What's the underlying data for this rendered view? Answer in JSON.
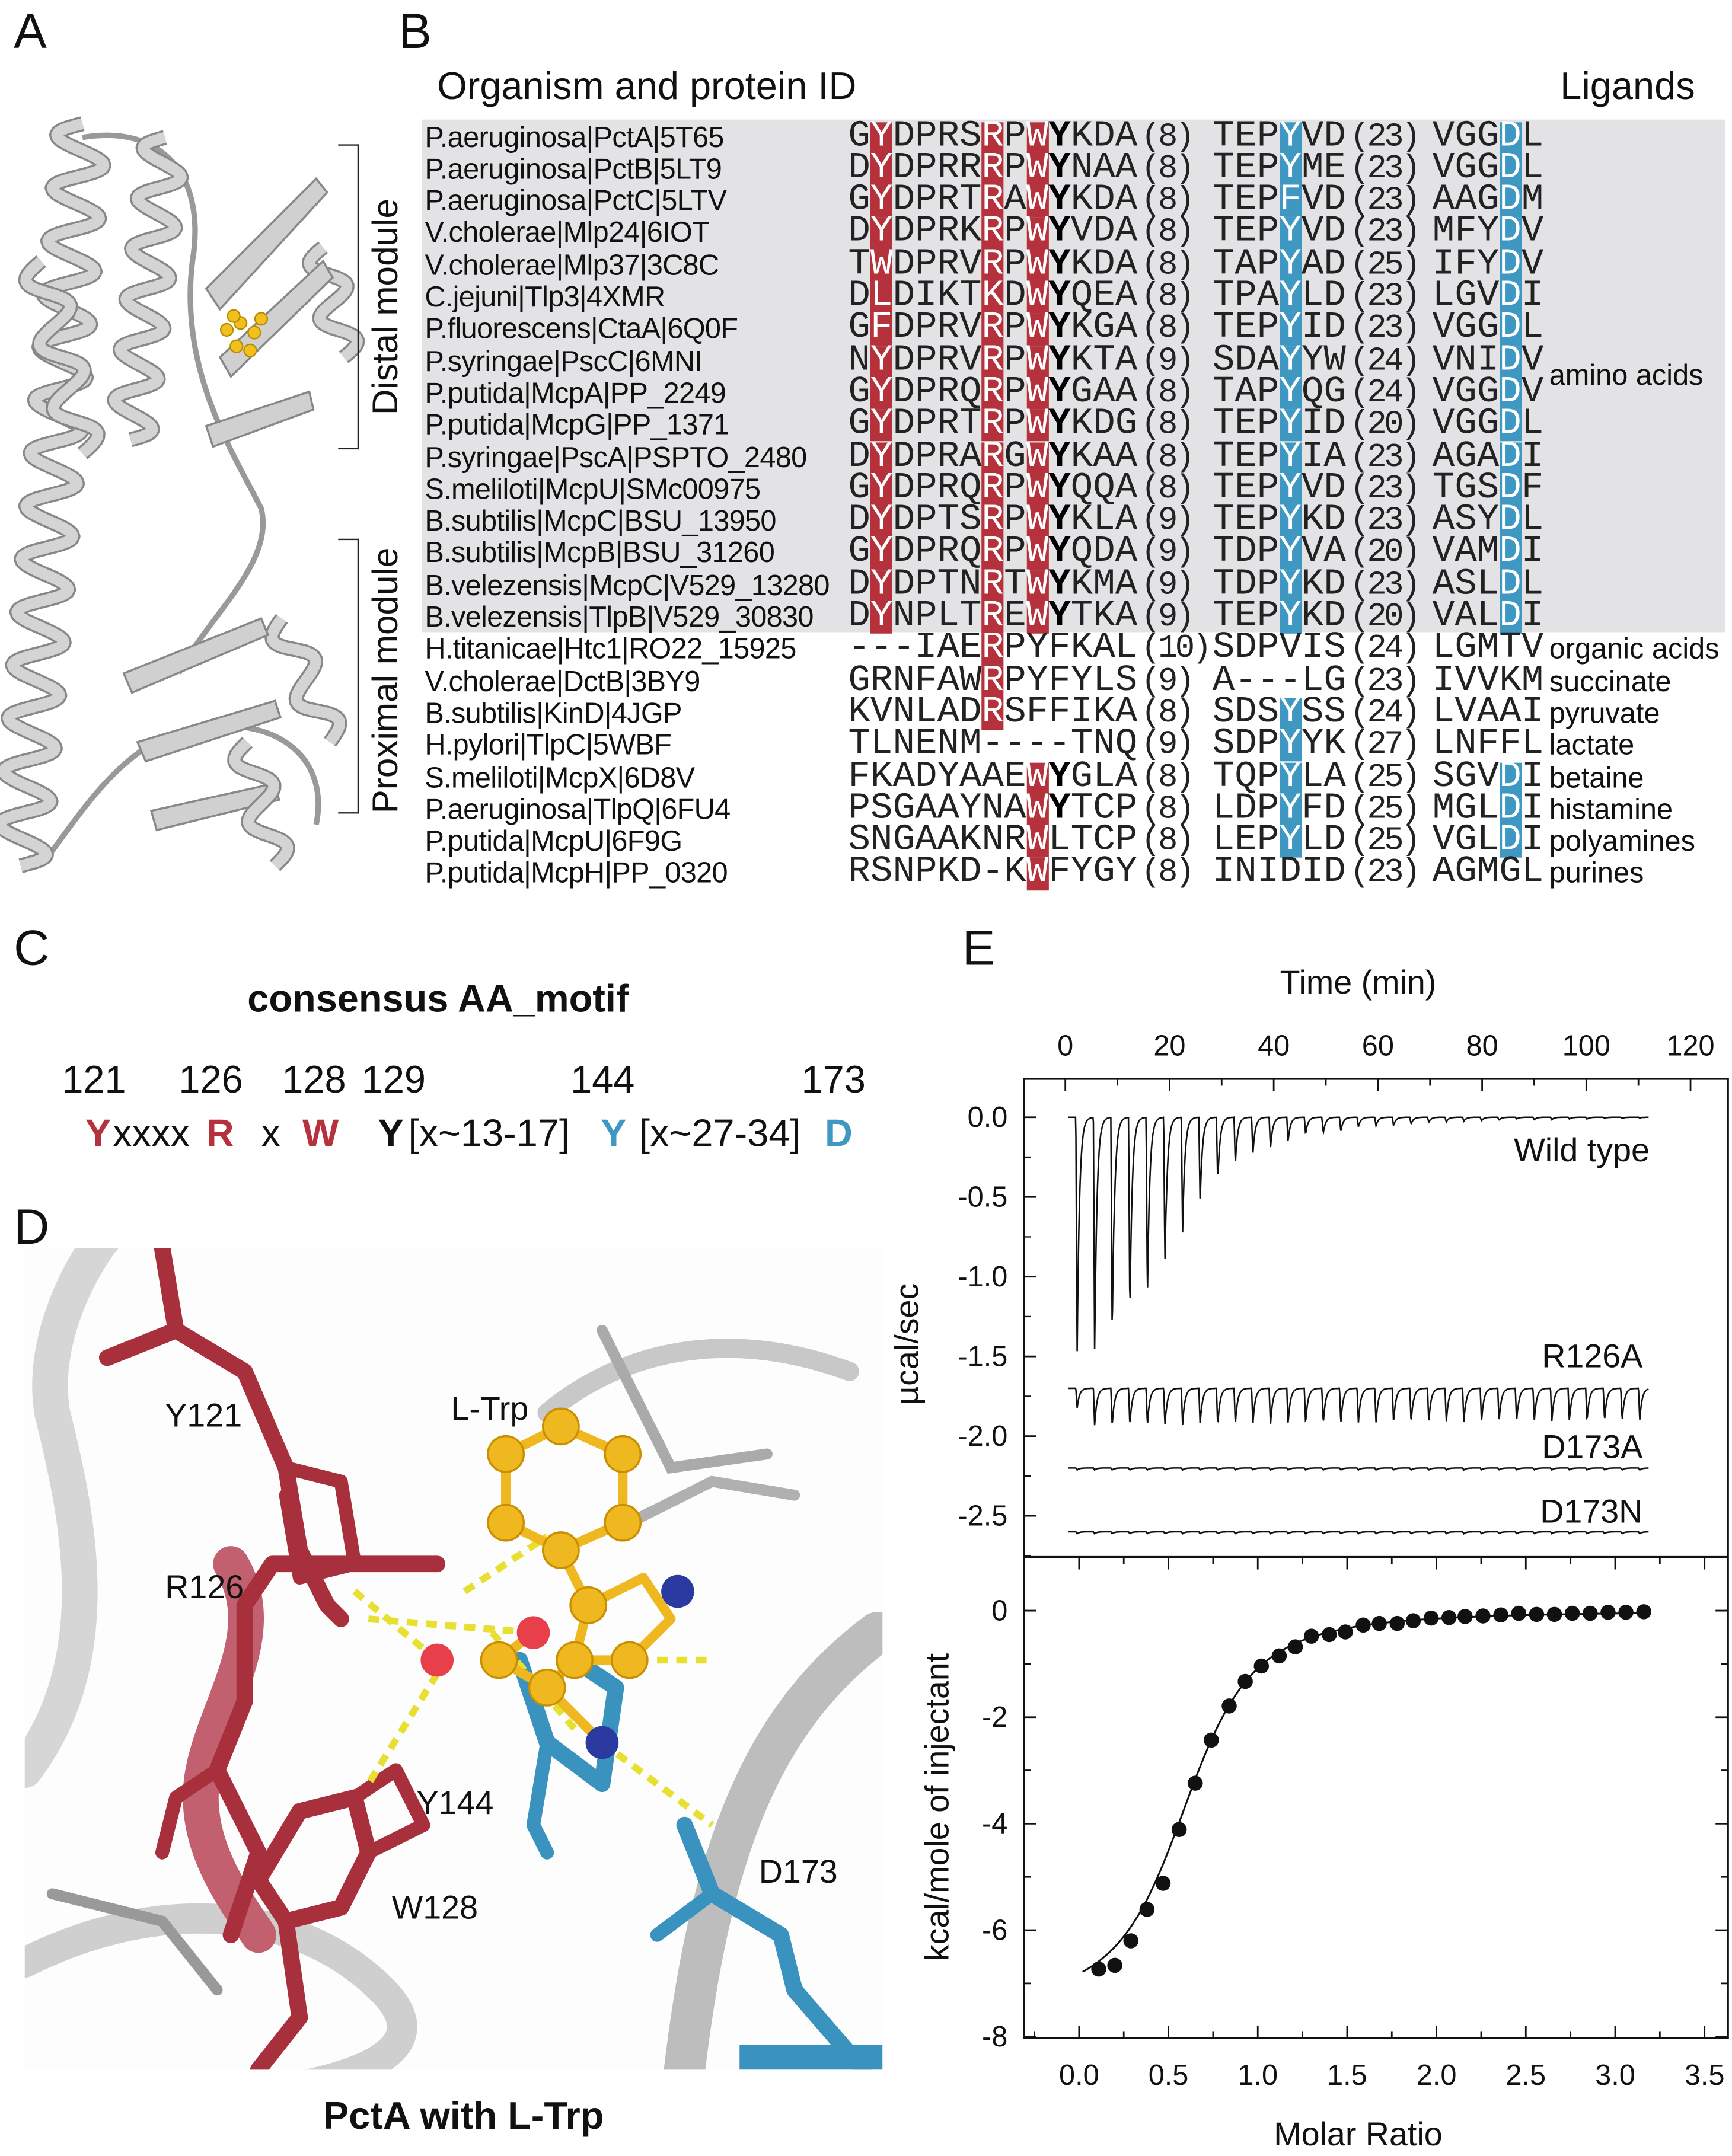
{
  "panels": {
    "a": "A",
    "b": "B",
    "c": "C",
    "d": "D",
    "e": "E"
  },
  "panel_a": {
    "distal_label": "Distal module",
    "proximal_label": "Proximal module"
  },
  "panel_b": {
    "header_organism": "Organism and protein ID",
    "header_ligands": "Ligands",
    "colors": {
      "red": "#b5323d",
      "blue": "#3f98c2",
      "shade": "#e3e3e5"
    },
    "rows": [
      {
        "name": "P.aeruginosa|PctA|5T65",
        "s1": "GYDPRSRPWYKDA",
        "n1": "(8)",
        "s3": "TEPYVD",
        "n2": "(23)",
        "s5": "VGGDL",
        "ligand": "",
        "red": [
          1,
          6,
          8
        ],
        "bold": [
          9
        ],
        "blue3": [
          3
        ],
        "blue5": [
          3
        ]
      },
      {
        "name": "P.aeruginosa|PctB|5LT9",
        "s1": "DYDPRRRPWYNAA",
        "n1": "(8)",
        "s3": "TEPYME",
        "n2": "(23)",
        "s5": "VGGDL",
        "ligand": "",
        "red": [
          1,
          6,
          8
        ],
        "bold": [
          9
        ],
        "blue3": [
          3
        ],
        "blue5": [
          3
        ]
      },
      {
        "name": "P.aeruginosa|PctC|5LTV",
        "s1": "GYDPRTRAWYKDA",
        "n1": "(8)",
        "s3": "TEPFVD",
        "n2": "(23)",
        "s5": "AAGDM",
        "ligand": "",
        "red": [
          1,
          6,
          8
        ],
        "bold": [
          9
        ],
        "blue3": [
          3
        ],
        "blue5": [
          3
        ]
      },
      {
        "name": "V.cholerae|Mlp24|6IOT",
        "s1": "DYDPRKRPWYVDA",
        "n1": "(8)",
        "s3": "TEPYVD",
        "n2": "(23)",
        "s5": "MFYDV",
        "ligand": "",
        "red": [
          1,
          6,
          8
        ],
        "bold": [
          9
        ],
        "blue3": [
          3
        ],
        "blue5": [
          3
        ]
      },
      {
        "name": "V.cholerae|Mlp37|3C8C",
        "s1": "TWDPRVRPWYKDA",
        "n1": "(8)",
        "s3": "TAPYAD",
        "n2": "(25)",
        "s5": "IFYDV",
        "ligand": "",
        "red": [
          1,
          6,
          8
        ],
        "bold": [
          9
        ],
        "blue3": [
          3
        ],
        "blue5": [
          3
        ]
      },
      {
        "name": "C.jejuni|Tlp3|4XMR",
        "s1": "DLDIKTKDWYQEA",
        "n1": "(8)",
        "s3": "TPAYLD",
        "n2": "(23)",
        "s5": "LGVDI",
        "ligand": "",
        "red": [
          1,
          6,
          8
        ],
        "bold": [
          9
        ],
        "blue3": [
          3
        ],
        "blue5": [
          3
        ]
      },
      {
        "name": "P.fluorescens|CtaA|6Q0F",
        "s1": "GFDPRVRPWYKGA",
        "n1": "(8)",
        "s3": "TEPYID",
        "n2": "(23)",
        "s5": "VGGDL",
        "ligand": "",
        "red": [
          1,
          6,
          8
        ],
        "bold": [
          9
        ],
        "blue3": [
          3
        ],
        "blue5": [
          3
        ]
      },
      {
        "name": "P.syringae|PscC|6MNI",
        "s1": "NYDPRVRPWYKTA",
        "n1": "(9)",
        "s3": "SDAYYW",
        "n2": "(24)",
        "s5": "VNIDV",
        "ligand": "",
        "red": [
          1,
          6,
          8
        ],
        "bold": [
          9
        ],
        "blue3": [
          3
        ],
        "blue5": [
          3
        ]
      },
      {
        "name": "P.putida|McpA|PP_2249",
        "s1": "GYDPRQRPWYGAA",
        "n1": "(8)",
        "s3": "TAPYQG",
        "n2": "(24)",
        "s5": "VGGDV",
        "ligand": "",
        "red": [
          1,
          6,
          8
        ],
        "bold": [
          9
        ],
        "blue3": [
          3
        ],
        "blue5": [
          3
        ]
      },
      {
        "name": "P.putida|McpG|PP_1371",
        "s1": "GYDPRTRPWYKDG",
        "n1": "(8)",
        "s3": "TEPYID",
        "n2": "(20)",
        "s5": "VGGDL",
        "ligand": "",
        "red": [
          1,
          6,
          8
        ],
        "bold": [
          9
        ],
        "blue3": [
          3
        ],
        "blue5": [
          3
        ]
      },
      {
        "name": "P.syringae|PscA|PSPTO_2480",
        "s1": "DYDPRARGWYKAA",
        "n1": "(8)",
        "s3": "TEPYIA",
        "n2": "(23)",
        "s5": "AGADI",
        "ligand": "",
        "red": [
          1,
          6,
          8
        ],
        "bold": [
          9
        ],
        "blue3": [
          3
        ],
        "blue5": [
          3
        ]
      },
      {
        "name": "S.meliloti|McpU|SMc00975",
        "s1": "GYDPRQRPWYQQA",
        "n1": "(8)",
        "s3": "TEPYVD",
        "n2": "(23)",
        "s5": "TGSDF",
        "ligand": "",
        "red": [
          1,
          6,
          8
        ],
        "bold": [
          9
        ],
        "blue3": [
          3
        ],
        "blue5": [
          3
        ]
      },
      {
        "name": "B.subtilis|McpC|BSU_13950",
        "s1": "DYDPTSRPWYKLA",
        "n1": "(9)",
        "s3": "TEPYKD",
        "n2": "(23)",
        "s5": "ASYDL",
        "ligand": "",
        "red": [
          1,
          6,
          8
        ],
        "bold": [
          9
        ],
        "blue3": [
          3
        ],
        "blue5": [
          3
        ]
      },
      {
        "name": "B.subtilis|McpB|BSU_31260",
        "s1": "GYDPRQRPWYQDA",
        "n1": "(9)",
        "s3": "TDPYVA",
        "n2": "(20)",
        "s5": "VAMDI",
        "ligand": "",
        "red": [
          1,
          6,
          8
        ],
        "bold": [
          9
        ],
        "blue3": [
          3
        ],
        "blue5": [
          3
        ]
      },
      {
        "name": "B.velezensis|McpC|V529_13280",
        "s1": "DYDPTNRTWYKMA",
        "n1": "(9)",
        "s3": "TDPYKD",
        "n2": "(23)",
        "s5": "ASLDL",
        "ligand": "",
        "red": [
          1,
          6,
          8
        ],
        "bold": [
          9
        ],
        "blue3": [
          3
        ],
        "blue5": [
          3
        ]
      },
      {
        "name": "B.velezensis|TlpB|V529_30830",
        "s1": "DYNPLTREWYTKA",
        "n1": "(9)",
        "s3": "TEPYKD",
        "n2": "(20)",
        "s5": "VALDI",
        "ligand": "",
        "red": [
          1,
          6,
          8
        ],
        "bold": [
          9
        ],
        "blue3": [
          3
        ],
        "blue5": [
          3
        ]
      },
      {
        "name": "H.titanicae|Htc1|RO22_15925",
        "s1": "---IAERPYFKAL",
        "n1": "(10)",
        "s3": "SDPVIS",
        "n2": "(24)",
        "s5": "LGMTV",
        "ligand": "organic acids",
        "red": [
          6
        ],
        "bold": [],
        "blue3": [],
        "blue5": []
      },
      {
        "name": "V.cholerae|DctB|3BY9",
        "s1": "GRNFAWRPYFYLS",
        "n1": "(9)",
        "s3": "A---LG",
        "n2": "(23)",
        "s5": "IVVKM",
        "ligand": "succinate",
        "red": [
          6
        ],
        "bold": [],
        "blue3": [],
        "blue5": []
      },
      {
        "name": "B.subtilis|KinD|4JGP",
        "s1": "KVNLADRSFFIKA",
        "n1": "(8)",
        "s3": "SDSYSS",
        "n2": "(24)",
        "s5": "LVAAI",
        "ligand": "pyruvate",
        "red": [
          6
        ],
        "bold": [],
        "blue3": [
          3
        ],
        "blue5": []
      },
      {
        "name": "H.pylori|TlpC|5WBF",
        "s1": "TLNENM----TNQ",
        "n1": "(9)",
        "s3": "SDPYYK",
        "n2": "(27)",
        "s5": "LNFFL",
        "ligand": "lactate",
        "red": [],
        "bold": [],
        "blue3": [
          3
        ],
        "blue5": []
      },
      {
        "name": "S.meliloti|McpX|6D8V",
        "s1": "FKADYAAEWYGLA",
        "n1": "(8)",
        "s3": "TQPYLA",
        "n2": "(25)",
        "s5": "SGVDI",
        "ligand": "betaine",
        "red": [
          8
        ],
        "bold": [
          9
        ],
        "blue3": [
          3
        ],
        "blue5": [
          3
        ]
      },
      {
        "name": "P.aeruginosa|TlpQ|6FU4",
        "s1": "PSGAAYNAWYTCP",
        "n1": "(8)",
        "s3": "LDPYFD",
        "n2": "(25)",
        "s5": "MGLDI",
        "ligand": "histamine",
        "red": [
          8
        ],
        "bold": [
          9
        ],
        "blue3": [
          3
        ],
        "blue5": [
          3
        ]
      },
      {
        "name": "P.putida|McpU|6F9G",
        "s1": "SNGAAKNRWLTCP",
        "n1": "(8)",
        "s3": "LEPYLD",
        "n2": "(25)",
        "s5": "VGLDI",
        "ligand": "polyamines",
        "red": [
          8
        ],
        "bold": [],
        "blue3": [
          3
        ],
        "blue5": [
          3
        ]
      },
      {
        "name": "P.putida|McpH|PP_0320",
        "s1": "RSNPKD-KWFYGY",
        "n1": "(8)",
        "s3": "INIDID",
        "n2": "(23)",
        "s5": "AGMGL",
        "ligand": "purines",
        "red": [
          8
        ],
        "bold": [],
        "blue3": [],
        "blue5": []
      }
    ],
    "amino_acids_label": "amino acids"
  },
  "panel_c": {
    "title": "consensus AA_motif",
    "positions": [
      "121",
      "126",
      "128",
      "129",
      "144",
      "173"
    ],
    "motif": [
      {
        "t": "Y",
        "c": "#b5323d",
        "b": true
      },
      {
        "t": "xxxx",
        "c": "#111",
        "b": false
      },
      {
        "t": "R",
        "c": "#b5323d",
        "b": true
      },
      {
        "t": "x",
        "c": "#111",
        "b": false
      },
      {
        "t": "W",
        "c": "#b5323d",
        "b": true
      },
      {
        "t": "Y",
        "c": "#111",
        "b": true
      },
      {
        "t": "[x~13-17]",
        "c": "#111",
        "b": false
      },
      {
        "t": "Y",
        "c": "#3f98c2",
        "b": true
      },
      {
        "t": "[x~27-34]",
        "c": "#111",
        "b": false
      },
      {
        "t": "D",
        "c": "#3f98c2",
        "b": true
      }
    ]
  },
  "panel_d": {
    "caption": "PctA with L-Trp",
    "labels": {
      "y121": "Y121",
      "ltrp": "L-Trp",
      "r126": "R126",
      "y144": "Y144",
      "w128": "W128",
      "d173": "D173"
    }
  },
  "chart_data": [
    {
      "type": "line",
      "xlabel": "Time (min)",
      "ylabel": "µcal/sec",
      "xlim": [
        0,
        120
      ],
      "ylim": [
        -2.8,
        0.15
      ],
      "x_ticks": [
        "0",
        "20",
        "40",
        "60",
        "80",
        "100",
        "120"
      ],
      "y_ticks": [
        "0.0",
        "-0.5",
        "-1.0",
        "-1.5",
        "-2.0",
        "-2.5"
      ],
      "traces": [
        {
          "name": "Wild type",
          "baseline": 0.0,
          "first_peak": -1.5
        },
        {
          "name": "R126A",
          "baseline": -1.7,
          "first_peak": -1.95
        },
        {
          "name": "D173A",
          "baseline": -2.2,
          "first_peak": -2.22
        },
        {
          "name": "D173N",
          "baseline": -2.6,
          "first_peak": -2.62
        }
      ],
      "injection_window_min": [
        2,
        110
      ]
    },
    {
      "type": "scatter",
      "xlabel": "Molar Ratio",
      "ylabel": "kcal/mole of injectant",
      "xlim": [
        -0.2,
        3.5
      ],
      "ylim": [
        -8,
        0.5
      ],
      "x_ticks": [
        "0.0",
        "0.5",
        "1.0",
        "1.5",
        "2.0",
        "2.5",
        "3.0",
        "3.5"
      ],
      "y_ticks": [
        "0",
        "-2",
        "-4",
        "-6",
        "-8"
      ],
      "x": [
        0.11,
        0.2,
        0.29,
        0.38,
        0.47,
        0.56,
        0.65,
        0.74,
        0.84,
        0.93,
        1.02,
        1.12,
        1.21,
        1.3,
        1.4,
        1.49,
        1.59,
        1.68,
        1.78,
        1.87,
        1.97,
        2.07,
        2.16,
        2.26,
        2.36,
        2.46,
        2.56,
        2.66,
        2.76,
        2.86,
        2.96,
        3.06,
        3.16
      ],
      "y": [
        -6.73,
        -6.66,
        -6.2,
        -5.61,
        -5.12,
        -4.11,
        -3.24,
        -2.43,
        -1.79,
        -1.33,
        -1.04,
        -0.85,
        -0.68,
        -0.48,
        -0.45,
        -0.4,
        -0.27,
        -0.24,
        -0.24,
        -0.19,
        -0.14,
        -0.13,
        -0.11,
        -0.1,
        -0.08,
        -0.05,
        -0.07,
        -0.07,
        -0.05,
        -0.05,
        -0.03,
        -0.03,
        -0.02
      ],
      "fit_line": true
    }
  ]
}
